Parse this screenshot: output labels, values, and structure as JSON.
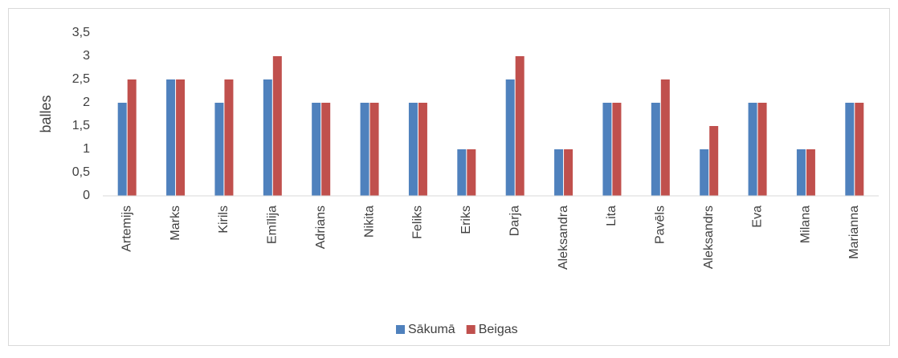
{
  "chart_data": {
    "type": "bar",
    "y_label": "balles",
    "categories": [
      "Artemijs",
      "Marks",
      "Kirils",
      "Emīlija",
      "Adrians",
      "Nikita",
      "Feliks",
      "Eriks",
      "Darja",
      "Aleksandra",
      "Lita",
      "Pavēls",
      "Aleksandrs",
      "Eva",
      "Milana",
      "Marianna"
    ],
    "series": [
      {
        "name": "Sākumā",
        "color": "#4f81bd",
        "values": [
          2,
          2.5,
          2,
          2.5,
          2,
          2,
          2,
          1,
          2.5,
          1,
          2,
          2,
          1,
          2,
          1,
          2
        ]
      },
      {
        "name": "Beigas",
        "color": "#c0504d",
        "values": [
          2.5,
          2.5,
          2.5,
          3,
          2,
          2,
          2,
          1,
          3,
          1,
          2,
          2.5,
          1.5,
          2,
          1,
          2
        ]
      }
    ],
    "ylim": [
      0,
      3.5
    ],
    "yticks": [
      0,
      {
        "value": 0.5,
        "label": "0,5"
      },
      1,
      {
        "value": 1.5,
        "label": "1,5"
      },
      2,
      {
        "value": 2.5,
        "label": "2,5"
      },
      3,
      {
        "value": 3.5,
        "label": "3,5"
      }
    ],
    "grid": false,
    "legend": "bottom"
  }
}
